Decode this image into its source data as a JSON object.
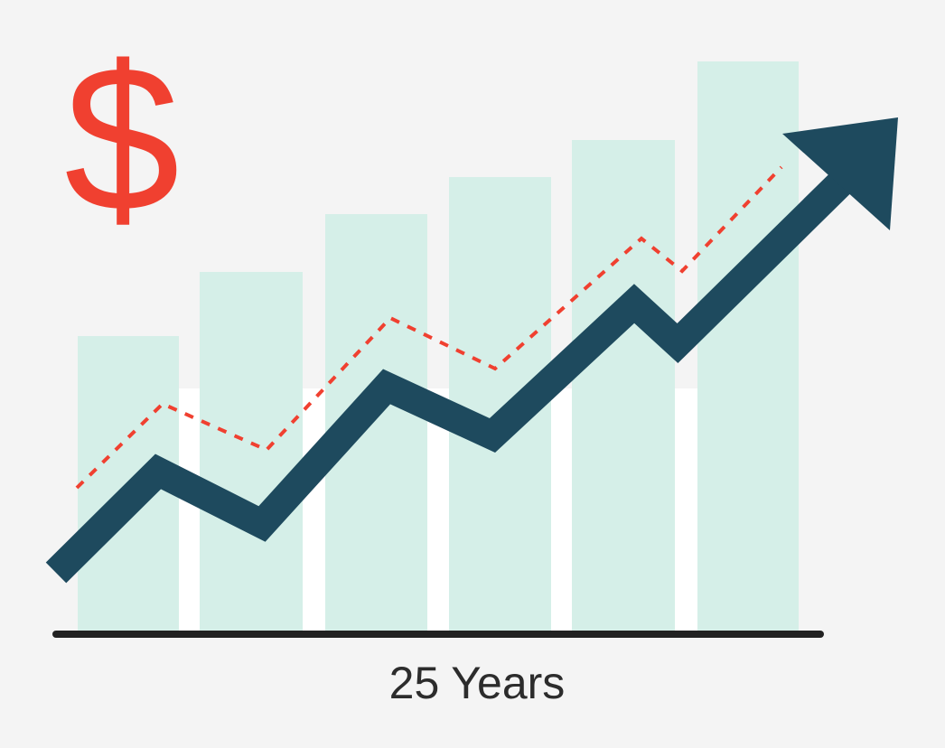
{
  "symbol": "$",
  "label": "25 Years"
}
